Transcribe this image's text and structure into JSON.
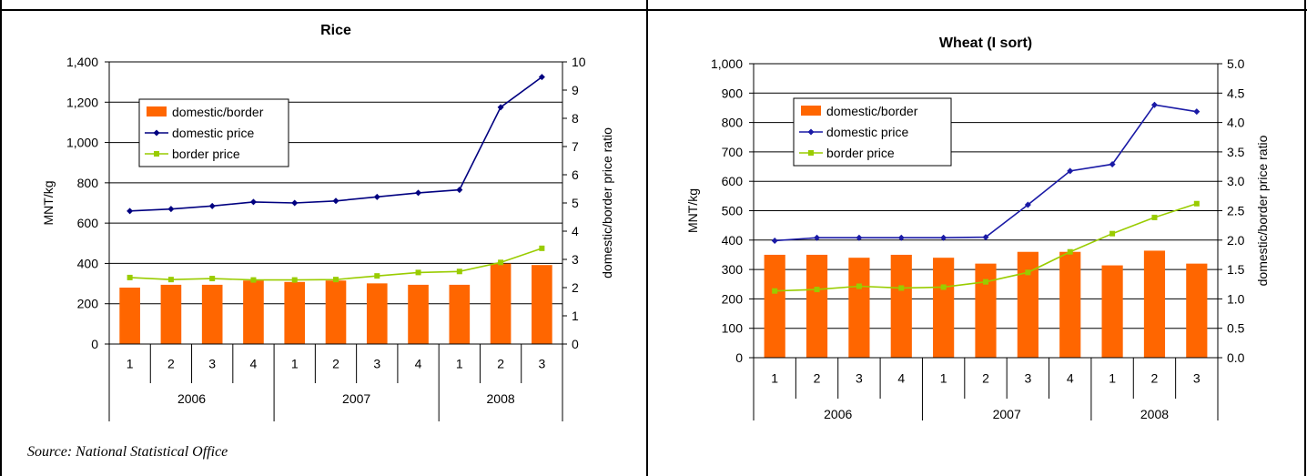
{
  "source_note": "Source:  National Statistical Office",
  "legend_labels": [
    "domestic/border",
    "domestic price",
    "border price"
  ],
  "colors": {
    "bar": "#FF6600",
    "domestic": "#1A1AA6",
    "rice_domestic": "#000080",
    "border": "#99CC00"
  },
  "chart_data": [
    {
      "type": "bar",
      "title": "Rice",
      "ylabel": "MNT/kg",
      "y2label": "domestic/border price ratio",
      "ylim": [
        0,
        1400
      ],
      "y2lim": [
        0,
        10
      ],
      "yticks": [
        "0",
        "200",
        "400",
        "600",
        "800",
        "1,000",
        "1,200",
        "1,400"
      ],
      "y2ticks": [
        "0",
        "1",
        "2",
        "3",
        "4",
        "5",
        "6",
        "7",
        "8",
        "9",
        "10"
      ],
      "categories": [
        "1",
        "2",
        "3",
        "4",
        "1",
        "2",
        "3",
        "4",
        "1",
        "2",
        "3"
      ],
      "years": [
        {
          "label": "2006",
          "count": 4
        },
        {
          "label": "2007",
          "count": 4
        },
        {
          "label": "2008",
          "count": 3
        }
      ],
      "series": [
        {
          "name": "domestic/border",
          "type": "bar",
          "axis": "y2",
          "values": [
            2.0,
            2.1,
            2.1,
            2.25,
            2.2,
            2.25,
            2.15,
            2.1,
            2.1,
            2.85,
            2.8
          ]
        },
        {
          "name": "domestic price",
          "type": "line",
          "axis": "y",
          "values": [
            660,
            670,
            685,
            705,
            700,
            710,
            730,
            750,
            765,
            1175,
            1325
          ]
        },
        {
          "name": "border price",
          "type": "line",
          "axis": "y",
          "values": [
            330,
            320,
            325,
            318,
            318,
            320,
            338,
            355,
            360,
            405,
            475
          ]
        }
      ],
      "legend": "top-left",
      "grid": true
    },
    {
      "type": "bar",
      "title": "Wheat (I sort)",
      "ylabel": "MNT/kg",
      "y2label": "domestic/border price ratio",
      "ylim": [
        0,
        1000
      ],
      "y2lim": [
        0,
        5
      ],
      "yticks": [
        "0",
        "100",
        "200",
        "300",
        "400",
        "500",
        "600",
        "700",
        "800",
        "900",
        "1,000"
      ],
      "y2ticks": [
        "0.0",
        "0.5",
        "1.0",
        "1.5",
        "2.0",
        "2.5",
        "3.0",
        "3.5",
        "4.0",
        "4.5",
        "5.0"
      ],
      "categories": [
        "1",
        "2",
        "3",
        "4",
        "1",
        "2",
        "3",
        "4",
        "1",
        "2",
        "3"
      ],
      "years": [
        {
          "label": "2006",
          "count": 4
        },
        {
          "label": "2007",
          "count": 4
        },
        {
          "label": "2008",
          "count": 3
        }
      ],
      "series": [
        {
          "name": "domestic/border",
          "type": "bar",
          "axis": "y2",
          "values": [
            1.75,
            1.75,
            1.7,
            1.75,
            1.7,
            1.6,
            1.8,
            1.8,
            1.57,
            1.82,
            1.6
          ]
        },
        {
          "name": "domestic price",
          "type": "line",
          "axis": "y",
          "values": [
            398,
            408,
            408,
            408,
            408,
            410,
            520,
            635,
            658,
            860,
            837
          ]
        },
        {
          "name": "border price",
          "type": "line",
          "axis": "y",
          "values": [
            227,
            232,
            243,
            237,
            240,
            258,
            290,
            360,
            422,
            477,
            524
          ]
        }
      ],
      "legend": "top-left",
      "grid": true
    }
  ]
}
